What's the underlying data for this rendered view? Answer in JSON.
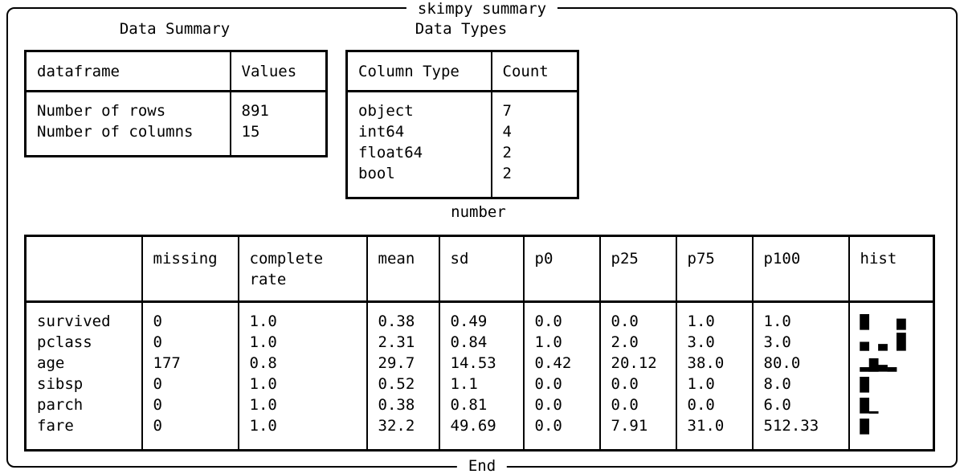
{
  "colors": {
    "background": "#ffffff",
    "foreground": "#000000",
    "border": "#000000"
  },
  "frame": {
    "title": "skimpy summary",
    "footer": "End"
  },
  "data_summary": {
    "title": "Data Summary",
    "headers": [
      "dataframe",
      "Values"
    ],
    "rows": [
      [
        "Number of rows",
        "891"
      ],
      [
        "Number of columns",
        "15"
      ]
    ]
  },
  "data_types": {
    "title": "Data Types",
    "headers": [
      "Column Type",
      "Count"
    ],
    "rows": [
      [
        "object",
        "7"
      ],
      [
        "int64",
        "4"
      ],
      [
        "float64",
        "2"
      ],
      [
        "bool",
        "2"
      ]
    ]
  },
  "number": {
    "title": "number",
    "headers": [
      "",
      "missing",
      "complete rate",
      "mean",
      "sd",
      "p0",
      "p25",
      "p75",
      "p100",
      "hist"
    ],
    "rows": [
      [
        "survived",
        "0",
        "1.0",
        "0.38",
        "0.49",
        "0.0",
        "0.0",
        "1.0",
        "1.0",
        "▇   ▅"
      ],
      [
        "pclass",
        "0",
        "1.0",
        "2.31",
        "0.84",
        "1.0",
        "2.0",
        "3.0",
        "3.0",
        "▄ ▃ █"
      ],
      [
        "age",
        "177",
        "0.8",
        "29.7",
        "14.53",
        "0.42",
        "20.12",
        "38.0",
        "80.0",
        "▂▆▃▂"
      ],
      [
        "sibsp",
        "0",
        "1.0",
        "0.52",
        "1.1",
        "0.0",
        "0.0",
        "1.0",
        "8.0",
        "▇"
      ],
      [
        "parch",
        "0",
        "1.0",
        "0.38",
        "0.81",
        "0.0",
        "0.0",
        "0.0",
        "6.0",
        "▇▁"
      ],
      [
        "fare",
        "0",
        "1.0",
        "32.2",
        "49.69",
        "0.0",
        "7.91",
        "31.0",
        "512.33",
        "▇"
      ]
    ]
  }
}
